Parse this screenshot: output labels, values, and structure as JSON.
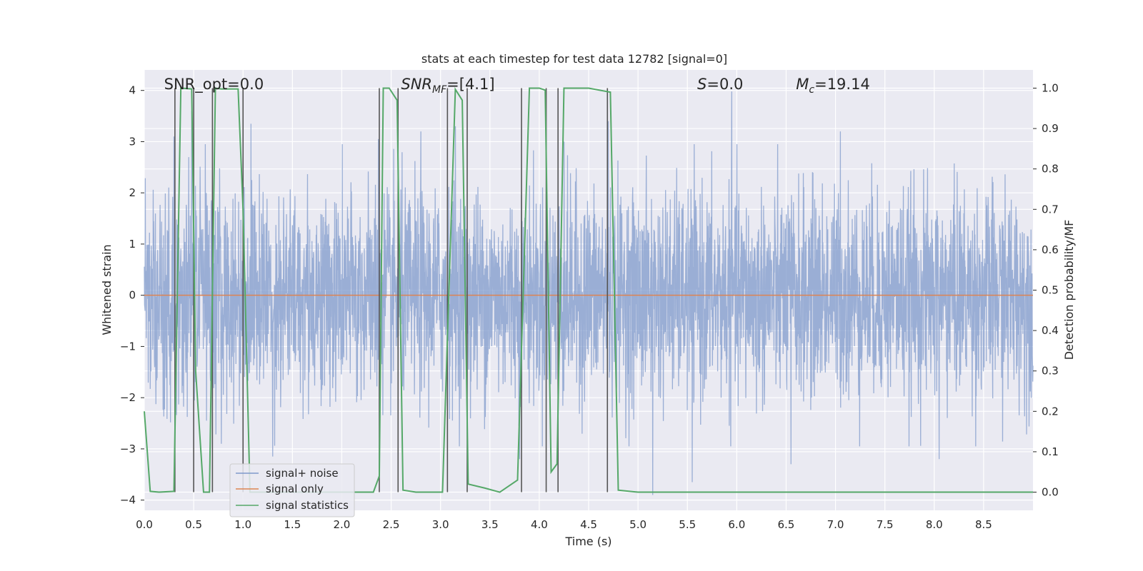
{
  "chart_data": {
    "type": "line",
    "title": "stats at each timestep for test data 12782 [signal=0]",
    "xlabel": "Time (s)",
    "ylabel_left": "Whitened strain",
    "ylabel_right": "Detection probability/MF",
    "xlim": [
      0,
      9.0
    ],
    "ylim_left": [
      -4.2,
      4.4
    ],
    "ylim_right": [
      -0.045,
      1.045
    ],
    "x_ticks": [
      0.0,
      0.5,
      1.0,
      1.5,
      2.0,
      2.5,
      3.0,
      3.5,
      4.0,
      4.5,
      5.0,
      5.5,
      6.0,
      6.5,
      7.0,
      7.5,
      8.0,
      8.5
    ],
    "x_tick_labels": [
      "0.0",
      "0.5",
      "1.0",
      "1.5",
      "2.0",
      "2.5",
      "3.0",
      "3.5",
      "4.0",
      "4.5",
      "5.0",
      "5.5",
      "6.0",
      "6.5",
      "7.0",
      "7.5",
      "8.0",
      "8.5"
    ],
    "y_left_ticks": [
      4,
      3,
      2,
      1,
      0,
      -1,
      -2,
      -3,
      -4
    ],
    "y_left_tick_labels": [
      "4",
      "3",
      "2",
      "1",
      "0",
      "−1",
      "−2",
      "−3",
      "−4"
    ],
    "y_right_ticks": [
      1.0,
      0.9,
      0.8,
      0.7,
      0.6,
      0.5,
      0.4,
      0.3,
      0.2,
      0.1,
      0.0
    ],
    "y_right_tick_labels": [
      "1.0",
      "0.9",
      "0.8",
      "0.7",
      "0.6",
      "0.5",
      "0.4",
      "0.3",
      "0.2",
      "0.1",
      "0.0"
    ],
    "grid": true,
    "legend_position": "lower-left",
    "annotations": [
      {
        "id": "snr-opt",
        "x": 0.2,
        "text": "SNR_opt=0.0",
        "italic_prefix": "",
        "sub": "",
        "suffix": ""
      },
      {
        "id": "snr-mf",
        "x": 2.6,
        "text": "",
        "italic_prefix": "SNR",
        "sub": "MF",
        "suffix": "=[4.1]"
      },
      {
        "id": "s-stat",
        "x": 5.6,
        "text": "",
        "italic_prefix": "S",
        "sub": "",
        "suffix": "=0.0"
      },
      {
        "id": "chirp-mass",
        "x": 6.6,
        "text": "",
        "italic_prefix": "M",
        "sub": "c",
        "suffix": "=19.14"
      }
    ],
    "noise_band": {
      "typical_amplitude": 1.0,
      "peak_max": 3.98,
      "peak_min": -3.9
    },
    "series": [
      {
        "name": "signal+ noise",
        "color": "#7f9acb",
        "noise_amplitude": 1.0,
        "peaks": [
          [
            0.3,
            3.1
          ],
          [
            0.48,
            3.6
          ],
          [
            1.08,
            3.35
          ],
          [
            2.37,
            3.05
          ],
          [
            2.8,
            3.2
          ],
          [
            3.15,
            3.3
          ],
          [
            4.25,
            3.0
          ],
          [
            4.7,
            3.4
          ],
          [
            5.95,
            3.98
          ],
          [
            7.05,
            3.2
          ],
          [
            0.78,
            -2.9
          ],
          [
            1.3,
            -3.15
          ],
          [
            3.8,
            -3.2
          ],
          [
            5.15,
            -3.9
          ],
          [
            5.55,
            -3.65
          ],
          [
            6.55,
            -3.3
          ],
          [
            8.05,
            -3.2
          ]
        ]
      },
      {
        "name": "signal only",
        "color": "#dd8452",
        "values_constant": 0.0
      },
      {
        "name": "signal statistics",
        "color": "#55a868",
        "x": [
          0.0,
          0.06,
          0.15,
          0.3,
          0.37,
          0.48,
          0.52,
          0.6,
          0.66,
          0.72,
          0.78,
          0.95,
          1.0,
          1.07,
          1.2,
          1.5,
          2.0,
          2.32,
          2.38,
          2.42,
          2.48,
          2.56,
          2.62,
          2.75,
          3.02,
          3.15,
          3.22,
          3.28,
          3.45,
          3.6,
          3.78,
          3.9,
          4.0,
          4.06,
          4.12,
          4.18,
          4.25,
          4.5,
          4.72,
          4.8,
          5.0,
          9.0
        ],
        "y": [
          0.2,
          0.002,
          0.0,
          0.002,
          1.0,
          0.998,
          0.3,
          0.0,
          0.0,
          1.0,
          0.998,
          0.998,
          0.7,
          0.0,
          0.0,
          0.0,
          0.0,
          0.0,
          0.04,
          1.0,
          1.0,
          0.97,
          0.005,
          0.0,
          0.0,
          0.997,
          0.97,
          0.02,
          0.01,
          0.0,
          0.03,
          1.0,
          1.0,
          0.995,
          0.05,
          0.07,
          1.0,
          1.0,
          0.99,
          0.005,
          0.0,
          0.0
        ]
      }
    ],
    "vlines": [
      0.31,
      0.5,
      0.69,
      1.0,
      2.38,
      2.57,
      3.07,
      3.27,
      3.82,
      4.07,
      4.19,
      4.69
    ]
  }
}
